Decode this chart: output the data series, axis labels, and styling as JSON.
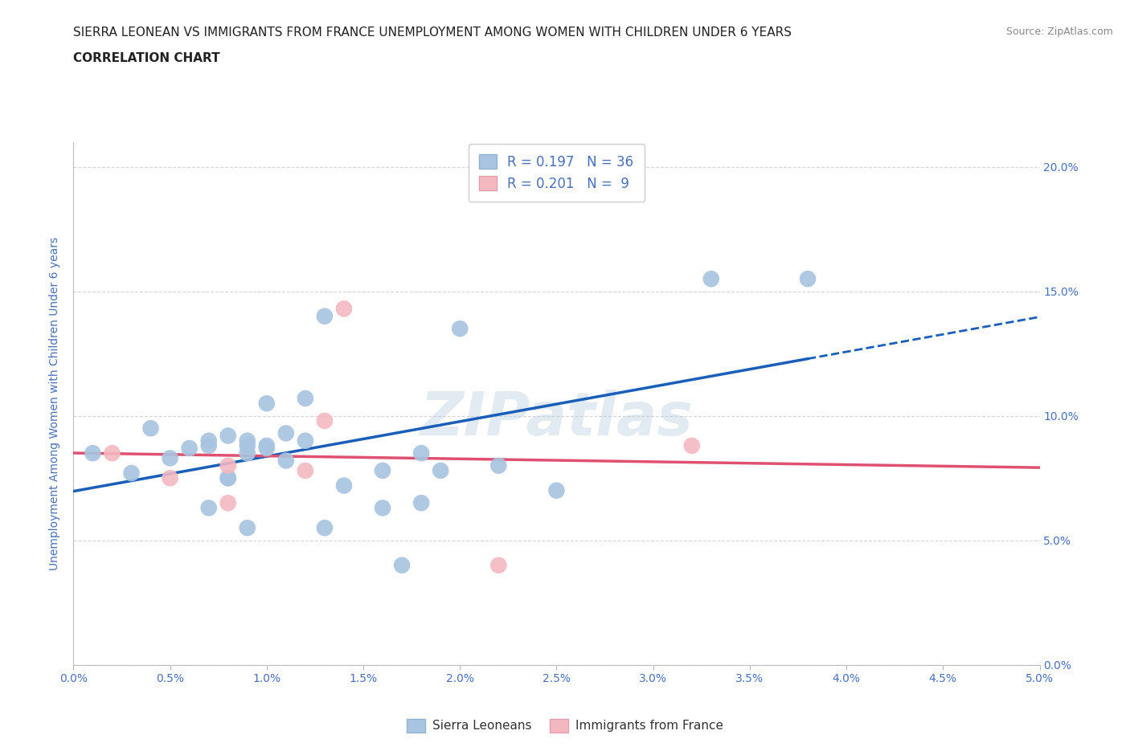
{
  "title_line1": "SIERRA LEONEAN VS IMMIGRANTS FROM FRANCE UNEMPLOYMENT AMONG WOMEN WITH CHILDREN UNDER 6 YEARS",
  "title_line2": "CORRELATION CHART",
  "source": "Source: ZipAtlas.com",
  "ylabel": "Unemployment Among Women with Children Under 6 years",
  "xlim": [
    0.0,
    0.05
  ],
  "ylim": [
    0.0,
    0.21
  ],
  "r_sierra": 0.197,
  "n_sierra": 36,
  "r_france": 0.201,
  "n_france": 9,
  "sierra_color": "#a8c4e0",
  "france_color": "#f4b8c1",
  "trend_sierra_color": "#1a5eb8",
  "trend_france_color": "#e05070",
  "watermark": "ZIPatlas",
  "sierra_x": [
    0.001,
    0.003,
    0.004,
    0.005,
    0.006,
    0.007,
    0.007,
    0.007,
    0.008,
    0.008,
    0.008,
    0.009,
    0.009,
    0.009,
    0.009,
    0.01,
    0.01,
    0.01,
    0.011,
    0.011,
    0.012,
    0.012,
    0.013,
    0.013,
    0.014,
    0.016,
    0.016,
    0.017,
    0.018,
    0.018,
    0.019,
    0.02,
    0.022,
    0.025,
    0.033,
    0.038
  ],
  "sierra_y": [
    0.085,
    0.077,
    0.095,
    0.083,
    0.087,
    0.063,
    0.088,
    0.09,
    0.075,
    0.092,
    0.075,
    0.085,
    0.088,
    0.09,
    0.055,
    0.105,
    0.088,
    0.087,
    0.093,
    0.082,
    0.107,
    0.09,
    0.055,
    0.14,
    0.072,
    0.078,
    0.063,
    0.04,
    0.065,
    0.085,
    0.078,
    0.135,
    0.08,
    0.07,
    0.155,
    0.155
  ],
  "france_x": [
    0.002,
    0.005,
    0.008,
    0.008,
    0.012,
    0.013,
    0.014,
    0.022,
    0.032
  ],
  "france_y": [
    0.085,
    0.075,
    0.08,
    0.065,
    0.078,
    0.098,
    0.143,
    0.04,
    0.088
  ],
  "grid_color": "#cccccc",
  "background_color": "#ffffff",
  "title_color": "#222222",
  "axis_color": "#4a6fba"
}
